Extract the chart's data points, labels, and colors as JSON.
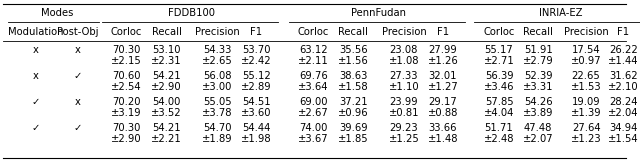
{
  "sub_headers": [
    "Modulation",
    "Post-Obj",
    "Corloc",
    "Recall",
    "Precision",
    "F1",
    "Corloc",
    "Recall",
    "Precision",
    "F1",
    "Corloc",
    "Recall",
    "Precision",
    "F1"
  ],
  "rows": [
    {
      "mod": "x",
      "postobj": "x",
      "vals": [
        "70.30",
        "53.10",
        "54.33",
        "53.70",
        "63.12",
        "35.56",
        "23.08",
        "27.99",
        "55.17",
        "51.91",
        "17.54",
        "26.22"
      ],
      "stds": [
        "±2.15",
        "±2.31",
        "±2.65",
        "±2.42",
        "±2.11",
        "±1.56",
        "±1.08",
        "±1.26",
        "±2.71",
        "±2.79",
        "±0.97",
        "±1.44"
      ]
    },
    {
      "mod": "x",
      "postobj": "✓",
      "vals": [
        "70.60",
        "54.21",
        "56.08",
        "55.12",
        "69.76",
        "38.63",
        "27.33",
        "32.01",
        "56.39",
        "52.39",
        "22.65",
        "31.62"
      ],
      "stds": [
        "±2.54",
        "±2.90",
        "±3.00",
        "±2.89",
        "±3.64",
        "±1.58",
        "±1.10",
        "±1.27",
        "±3.46",
        "±3.31",
        "±1.53",
        "±2.10"
      ]
    },
    {
      "mod": "✓",
      "postobj": "x",
      "vals": [
        "70.20",
        "54.00",
        "55.05",
        "54.51",
        "69.00",
        "37.21",
        "23.99",
        "29.17",
        "57.85",
        "54.26",
        "19.09",
        "28.24"
      ],
      "stds": [
        "±3.19",
        "±3.52",
        "±3.78",
        "±3.60",
        "±2.67",
        "±0.96",
        "±0.81",
        "±0.88",
        "±4.04",
        "±3.89",
        "±1.39",
        "±2.04"
      ]
    },
    {
      "mod": "✓",
      "postobj": "✓",
      "vals": [
        "70.30",
        "54.21",
        "54.70",
        "54.44",
        "74.00",
        "39.69",
        "29.23",
        "33.66",
        "51.71",
        "47.48",
        "27.64",
        "34.94"
      ],
      "stds": [
        "±2.90",
        "±2.21",
        "±1.89",
        "±1.98",
        "±3.67",
        "±1.85",
        "±1.25",
        "±1.48",
        "±2.48",
        "±2.07",
        "±1.23",
        "±1.54"
      ]
    }
  ],
  "group_labels": [
    "Modes",
    "FDDB100",
    "PennFudan",
    "INRIA-EZ"
  ],
  "bg_color": "#ffffff",
  "text_color": "#000000",
  "line_color": "#000000",
  "font_size": 7.2
}
